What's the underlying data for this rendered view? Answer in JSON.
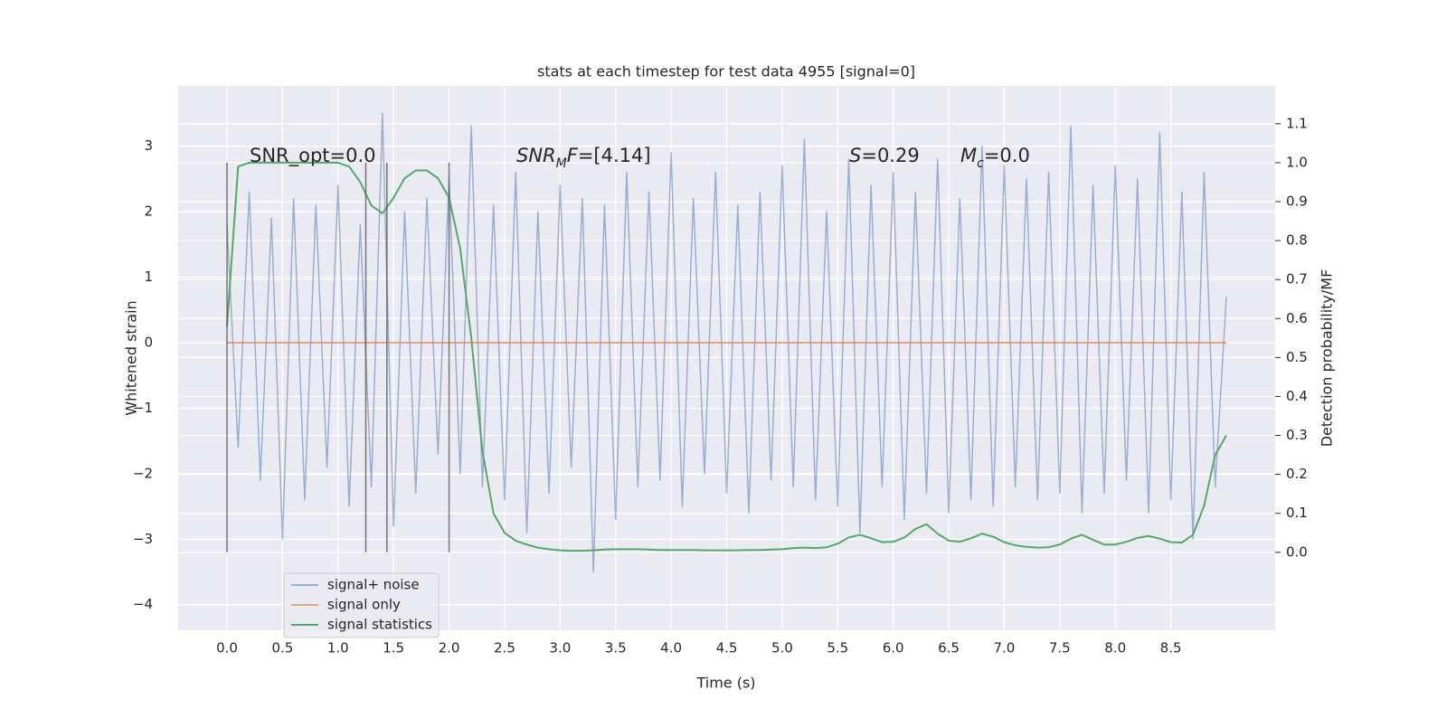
{
  "chart_data": {
    "type": "line",
    "title": "stats at each timestep for test data 4955 [signal=0]",
    "xlabel": "Time (s)",
    "ylabel": "Whitened strain",
    "y2label": "Detection probability/MF",
    "x": [
      0.0,
      0.1,
      0.2,
      0.3,
      0.4,
      0.5,
      0.6,
      0.7,
      0.8,
      0.9,
      1.0,
      1.1,
      1.2,
      1.3,
      1.4,
      1.5,
      1.6,
      1.7,
      1.8,
      1.9,
      2.0,
      2.1,
      2.2,
      2.3,
      2.4,
      2.5,
      2.6,
      2.7,
      2.8,
      2.9,
      3.0,
      3.1,
      3.2,
      3.3,
      3.4,
      3.5,
      3.6,
      3.7,
      3.8,
      3.9,
      4.0,
      4.1,
      4.2,
      4.3,
      4.4,
      4.5,
      4.6,
      4.7,
      4.8,
      4.9,
      5.0,
      5.1,
      5.2,
      5.3,
      5.4,
      5.5,
      5.6,
      5.7,
      5.8,
      5.9,
      6.0,
      6.1,
      6.2,
      6.3,
      6.4,
      6.5,
      6.6,
      6.7,
      6.8,
      6.9,
      7.0,
      7.1,
      7.2,
      7.3,
      7.4,
      7.5,
      7.6,
      7.7,
      7.8,
      7.9,
      8.0,
      8.1,
      8.2,
      8.3,
      8.4,
      8.5,
      8.6,
      8.7,
      8.8,
      8.9,
      9.0
    ],
    "series": [
      {
        "name": "signal+ noise",
        "color": "#4c72b0",
        "opacity": 0.5,
        "values": [
          1.8,
          -1.6,
          2.3,
          -2.1,
          1.9,
          -3.0,
          2.2,
          -2.4,
          2.1,
          -1.9,
          2.4,
          -2.5,
          1.8,
          -2.2,
          3.5,
          -2.8,
          2.0,
          -2.3,
          2.2,
          -1.7,
          2.5,
          -2.0,
          3.3,
          -2.2,
          2.1,
          -2.4,
          2.6,
          -2.9,
          2.0,
          -2.3,
          2.4,
          -1.9,
          2.2,
          -3.5,
          2.1,
          -2.7,
          2.6,
          -2.2,
          2.3,
          -2.1,
          2.9,
          -2.5,
          2.2,
          -2.0,
          2.6,
          -2.3,
          2.1,
          -2.6,
          2.3,
          -2.1,
          2.7,
          -2.2,
          3.1,
          -2.4,
          2.0,
          -2.5,
          2.8,
          -2.9,
          2.4,
          -2.2,
          2.6,
          -2.7,
          2.3,
          -2.3,
          2.8,
          -2.6,
          2.2,
          -2.4,
          3.0,
          -2.5,
          2.7,
          -2.2,
          2.5,
          -2.4,
          2.6,
          -2.3,
          3.3,
          -2.6,
          2.4,
          -2.3,
          2.7,
          -2.1,
          2.5,
          -2.6,
          3.2,
          -2.4,
          2.3,
          -3.0,
          2.6,
          -2.2,
          0.7
        ]
      },
      {
        "name": "signal only",
        "color": "#dd8452",
        "opacity": 0.7,
        "values": [
          0,
          0,
          0,
          0,
          0,
          0,
          0,
          0,
          0,
          0,
          0,
          0,
          0,
          0,
          0,
          0,
          0,
          0,
          0,
          0,
          0,
          0,
          0,
          0,
          0,
          0,
          0,
          0,
          0,
          0,
          0,
          0,
          0,
          0,
          0,
          0,
          0,
          0,
          0,
          0,
          0,
          0,
          0,
          0,
          0,
          0,
          0,
          0,
          0,
          0,
          0,
          0,
          0,
          0,
          0,
          0,
          0,
          0,
          0,
          0,
          0,
          0,
          0,
          0,
          0,
          0,
          0,
          0,
          0,
          0,
          0,
          0,
          0,
          0,
          0,
          0,
          0,
          0,
          0,
          0,
          0,
          0,
          0,
          0,
          0,
          0,
          0,
          0,
          0,
          0,
          0
        ]
      },
      {
        "name": "signal statistics",
        "color": "#55a868",
        "opacity": 1,
        "axis": "y2",
        "values": [
          0.58,
          0.99,
          1.0,
          1.0,
          1.0,
          1.0,
          1.0,
          1.0,
          1.0,
          1.0,
          1.0,
          0.99,
          0.95,
          0.89,
          0.87,
          0.91,
          0.96,
          0.98,
          0.98,
          0.96,
          0.91,
          0.78,
          0.55,
          0.26,
          0.1,
          0.05,
          0.03,
          0.02,
          0.012,
          0.008,
          0.005,
          0.004,
          0.004,
          0.005,
          0.007,
          0.008,
          0.008,
          0.008,
          0.007,
          0.006,
          0.006,
          0.006,
          0.006,
          0.005,
          0.005,
          0.005,
          0.005,
          0.006,
          0.006,
          0.007,
          0.008,
          0.011,
          0.012,
          0.011,
          0.013,
          0.022,
          0.038,
          0.045,
          0.036,
          0.026,
          0.027,
          0.038,
          0.06,
          0.072,
          0.048,
          0.03,
          0.027,
          0.036,
          0.048,
          0.04,
          0.026,
          0.018,
          0.014,
          0.012,
          0.013,
          0.02,
          0.035,
          0.045,
          0.032,
          0.02,
          0.02,
          0.027,
          0.037,
          0.042,
          0.035,
          0.026,
          0.025,
          0.045,
          0.12,
          0.25,
          0.3
        ]
      }
    ],
    "vlines": [
      0,
      1.25,
      1.44,
      2.0
    ],
    "annotations": [
      [
        {
          "text": "SNR_opt=0.0"
        }
      ],
      [
        {
          "text": "SNR",
          "italic": true
        },
        {
          "text": "M",
          "italic": true,
          "sub": true
        },
        {
          "text": "F",
          "italic": true
        },
        {
          "text": "=[4.14]"
        }
      ],
      [
        {
          "text": "S",
          "italic": true
        },
        {
          "text": "=0.29"
        }
      ],
      [
        {
          "text": "M",
          "italic": true
        },
        {
          "text": "c",
          "italic": true,
          "sub": true
        },
        {
          "text": "=0.0"
        }
      ]
    ],
    "xlim": [
      -0.44,
      9.44
    ],
    "xticks": [
      {
        "value": 0,
        "label": "0.0"
      },
      {
        "value": 0.5,
        "label": "0.5"
      },
      {
        "value": 1,
        "label": "1.0"
      },
      {
        "value": 1.5,
        "label": "1.5"
      },
      {
        "value": 2,
        "label": "2.0"
      },
      {
        "value": 2.5,
        "label": "2.5"
      },
      {
        "value": 3,
        "label": "3.0"
      },
      {
        "value": 3.5,
        "label": "3.5"
      },
      {
        "value": 4,
        "label": "4.0"
      },
      {
        "value": 4.5,
        "label": "4.5"
      },
      {
        "value": 5,
        "label": "5.0"
      },
      {
        "value": 5.5,
        "label": "5.5"
      },
      {
        "value": 6,
        "label": "6.0"
      },
      {
        "value": 6.5,
        "label": "6.5"
      },
      {
        "value": 7,
        "label": "7.0"
      },
      {
        "value": 7.5,
        "label": "7.5"
      },
      {
        "value": 8,
        "label": "8.0"
      },
      {
        "value": 8.5,
        "label": "8.5"
      }
    ],
    "ylim": [
      -4.39,
      3.92
    ],
    "yticks": [
      {
        "value": -4,
        "label": "−4"
      },
      {
        "value": -3,
        "label": "−3"
      },
      {
        "value": -2,
        "label": "−2"
      },
      {
        "value": -1,
        "label": "−1"
      },
      0,
      1,
      2,
      3
    ],
    "y2lim": [
      -0.2,
      1.197
    ],
    "y2ticks": [
      {
        "value": 0,
        "label": "0.0"
      },
      {
        "value": 0.1,
        "label": "0.1"
      },
      {
        "value": 0.2,
        "label": "0.2"
      },
      {
        "value": 0.3,
        "label": "0.3"
      },
      {
        "value": 0.4,
        "label": "0.4"
      },
      {
        "value": 0.5,
        "label": "0.5"
      },
      {
        "value": 0.6,
        "label": "0.6"
      },
      {
        "value": 0.7,
        "label": "0.7"
      },
      {
        "value": 0.8,
        "label": "0.8"
      },
      {
        "value": 0.9,
        "label": "0.9"
      },
      {
        "value": 1,
        "label": "1.0"
      },
      {
        "value": 1.1,
        "label": "1.1"
      }
    ],
    "grid": true,
    "legend": "lower left"
  }
}
